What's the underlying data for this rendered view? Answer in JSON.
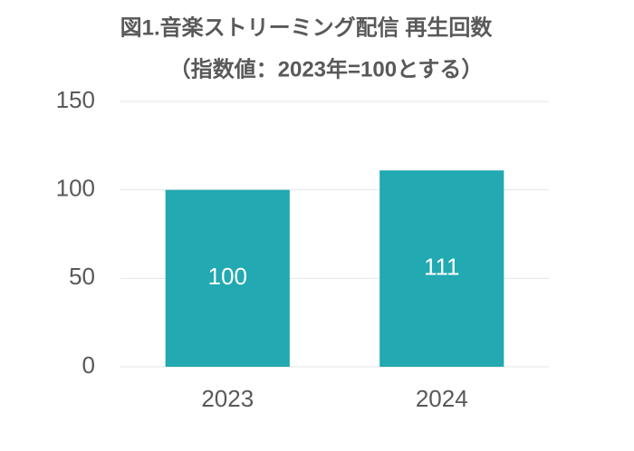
{
  "chart_data": {
    "type": "bar",
    "title": "図1.音楽ストリーミング配信 再生回数",
    "subtitle": "（指数値：2023年=100とする）",
    "categories": [
      "2023",
      "2024"
    ],
    "values": [
      100,
      111
    ],
    "color": "#22a9b1",
    "ylim": [
      0,
      150
    ],
    "yticks": [
      0,
      50,
      100,
      150
    ],
    "grid": true
  }
}
